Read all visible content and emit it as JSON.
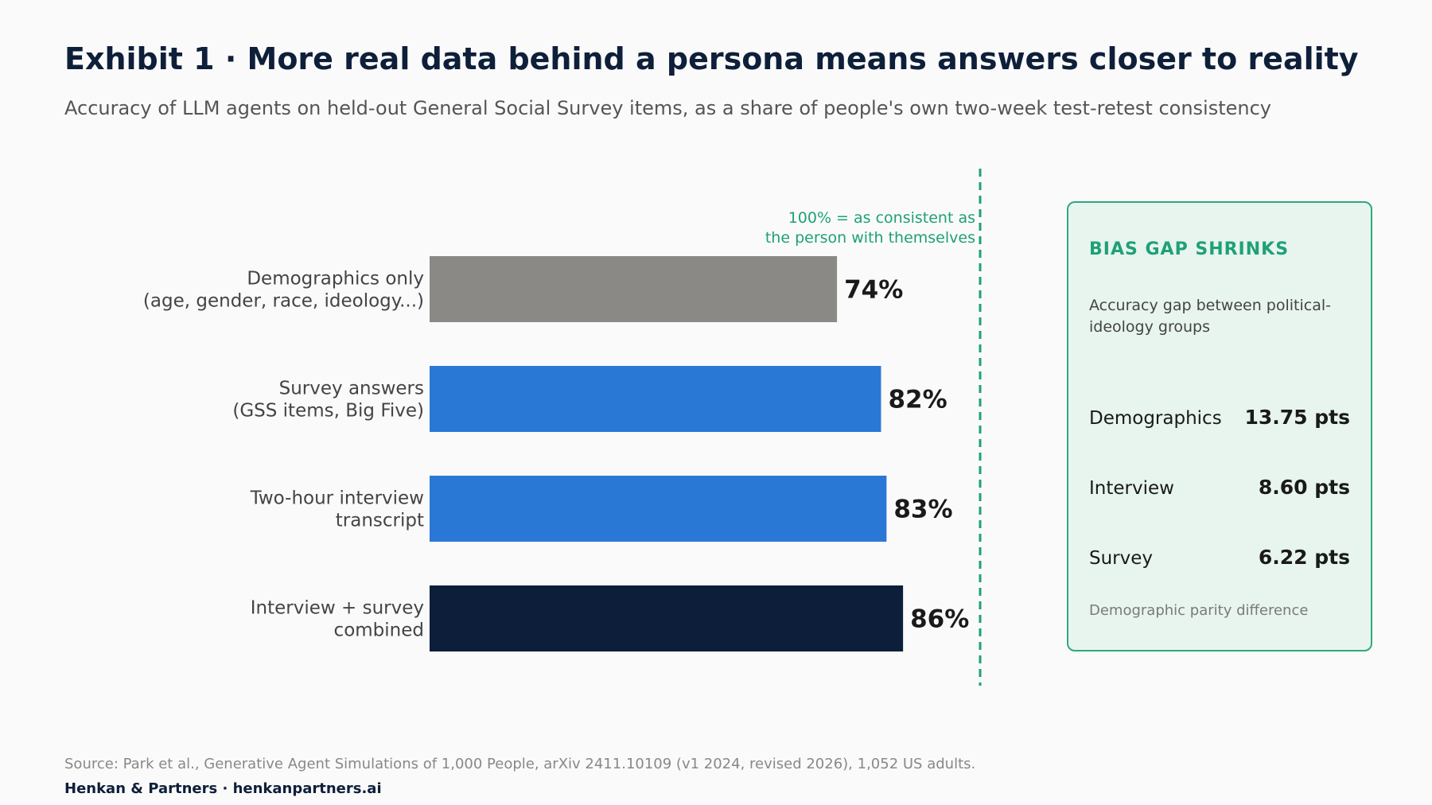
{
  "header": {
    "title": "Exhibit 1 · More real data behind a persona means answers closer to reality",
    "subtitle": "Accuracy of LLM agents on held-out General Social Survey items, as a share of people's own two-week test-retest consistency"
  },
  "chart_data": {
    "type": "bar",
    "orientation": "horizontal",
    "title": "Exhibit 1 · More real data behind a persona means answers closer to reality",
    "subtitle": "Accuracy of LLM agents on held-out General Social Survey items, as a share of people's own two-week test-retest consistency",
    "categories": [
      [
        "Demographics only",
        "(age, gender, race, ideology...)"
      ],
      [
        "Survey answers",
        "(GSS items, Big Five)"
      ],
      [
        "Two-hour interview",
        "transcript"
      ],
      [
        "Interview + survey",
        "combined"
      ]
    ],
    "values": [
      74,
      82,
      83,
      86
    ],
    "value_labels": [
      "74%",
      "82%",
      "83%",
      "86%"
    ],
    "colors": [
      "#8a8986",
      "#2a78d6",
      "#2a78d6",
      "#0c1e3a"
    ],
    "xlim": [
      0,
      100
    ],
    "grid": false,
    "reference_line": {
      "value": 100,
      "color": "#1fa078",
      "label": [
        "100% = as consistent as",
        "the person with themselves"
      ]
    }
  },
  "panel": {
    "title": "BIAS GAP SHRINKS",
    "description": "Accuracy gap between political-ideology groups",
    "rows": [
      {
        "label": "Demographics",
        "value": "13.75 pts"
      },
      {
        "label": "Interview",
        "value": "8.60 pts"
      },
      {
        "label": "Survey",
        "value": "6.22 pts"
      }
    ],
    "footnote": "Demographic parity difference"
  },
  "footer": {
    "source": "Source: Park et al., Generative Agent Simulations of 1,000 People, arXiv 2411.10109 (v1 2024, revised 2026), 1,052 US adults.",
    "brand": "Henkan & Partners · henkanpartners.ai"
  }
}
